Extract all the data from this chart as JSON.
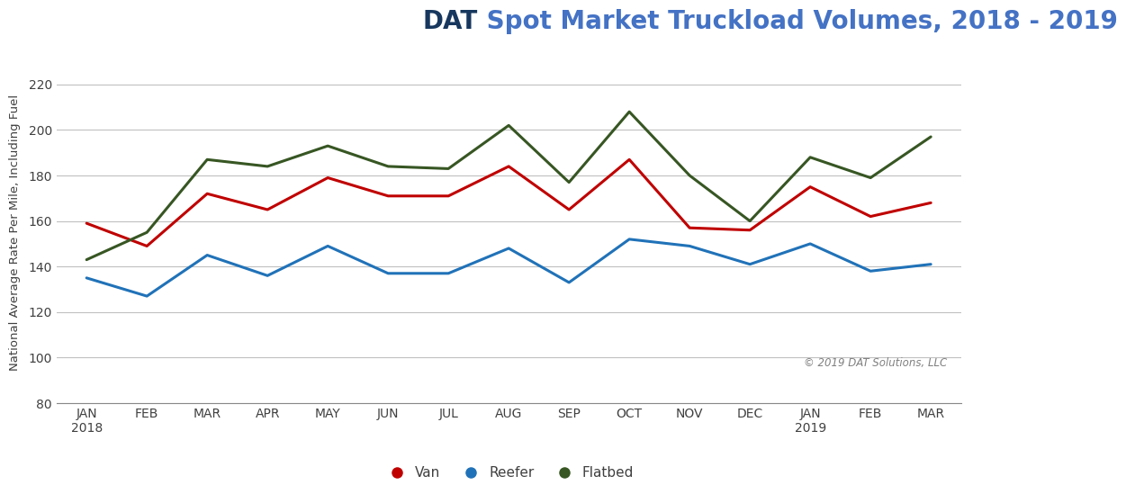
{
  "title_dat": "DAT",
  "title_rest": " Spot Market Truckload Volumes, 2018 - 2019",
  "ylabel": "National Average Rate Per Mile, Including Fuel",
  "copyright": "© 2019 DAT Solutions, LLC",
  "x_labels": [
    "JAN\n2018",
    "FEB",
    "MAR",
    "APR",
    "MAY",
    "JUN",
    "JUL",
    "AUG",
    "SEP",
    "OCT",
    "NOV",
    "DEC",
    "JAN\n2019",
    "FEB",
    "MAR"
  ],
  "van": [
    159,
    149,
    172,
    165,
    179,
    171,
    171,
    184,
    165,
    187,
    157,
    156,
    175,
    162,
    168
  ],
  "reefer": [
    135,
    127,
    145,
    136,
    149,
    137,
    137,
    148,
    133,
    152,
    149,
    141,
    150,
    138,
    141
  ],
  "flatbed": [
    143,
    155,
    187,
    184,
    193,
    184,
    183,
    202,
    177,
    208,
    180,
    160,
    188,
    179,
    197
  ],
  "van_color": "#C00000",
  "reefer_color": "#2072B8",
  "flatbed_color": "#375623",
  "title_dat_color": "#17375E",
  "title_rest_color": "#4472C4",
  "ylim": [
    80,
    230
  ],
  "yticks": [
    80,
    100,
    120,
    140,
    160,
    180,
    200,
    220
  ],
  "background_color": "#FFFFFF",
  "grid_color": "#C0C0C0",
  "line_width": 2.2,
  "legend_entries": [
    "Van",
    "Reefer",
    "Flatbed"
  ]
}
